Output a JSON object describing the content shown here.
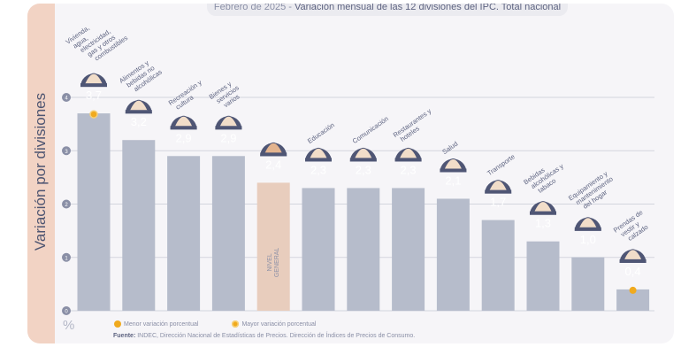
{
  "header": {
    "date": "Febrero de 2025",
    "title": "Variación mensual de las 12 divisiones del IPC. Total nacional"
  },
  "chart_data": {
    "type": "bar",
    "title": "Febrero de 2025 - Variación mensual de las 12 divisiones del IPC. Total nacional",
    "ylabel": "Variación por divisiones",
    "yunit": "%",
    "ylim": [
      0,
      4
    ],
    "yticks": [
      "0",
      "1",
      "2",
      "3",
      "4"
    ],
    "grid": true,
    "categories": [
      "Vivienda, agua, electricidad, gas y otros combustibles",
      "Alimentos y bebidas no alcohólicas",
      "Recreación y cultura",
      "Bienes y servicios varios",
      "NIVEL GENERAL",
      "Educación",
      "Comunicación",
      "Restaurantes y hoteles",
      "Salud",
      "Transporte",
      "Bebidas alcohólicas y tabaco",
      "Equipamiento y mantenimiento del hogar",
      "Prendas de vestir y calzado"
    ],
    "values": [
      3.7,
      3.2,
      2.9,
      2.9,
      2.4,
      2.3,
      2.3,
      2.3,
      2.1,
      1.7,
      1.3,
      1.0,
      0.4
    ],
    "value_labels": [
      "3,7",
      "3,2",
      "2,9",
      "2,9",
      "2,4",
      "2,3",
      "2,3",
      "2,3",
      "2,1",
      "1,7",
      "1,3",
      "1,0",
      "0,4"
    ],
    "highlight": {
      "max_index": 0,
      "min_index": 12,
      "general_index": 4
    },
    "colors": {
      "bar": "#b6bccb",
      "general": "#e8cdbd",
      "badge": "#4f5675",
      "marker": "#f0aa1e"
    }
  },
  "legend": {
    "min": "Menor variación porcentual",
    "max": "Mayor variación porcentual"
  },
  "source": {
    "label": "Fuente:",
    "text": " INDEC, Dirección Nacional de Estadísticas de Precios. Dirección de Índices de Precios de Consumo."
  }
}
